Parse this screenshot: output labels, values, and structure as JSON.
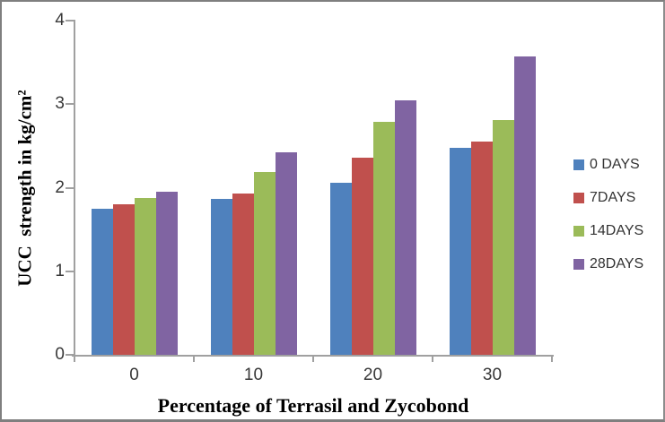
{
  "chart_data": {
    "type": "bar",
    "title": "",
    "xlabel": "Percentage of Terrasil and Zycobond",
    "ylabel": "UCC  strength in kg/cm²",
    "categories": [
      "0",
      "10",
      "20",
      "30"
    ],
    "series": [
      {
        "name": "0 DAYS",
        "color": "#4F81BD",
        "values": [
          1.75,
          1.87,
          2.06,
          2.48
        ]
      },
      {
        "name": "7DAYS",
        "color": "#C0504D",
        "values": [
          1.8,
          1.93,
          2.36,
          2.55
        ]
      },
      {
        "name": "14DAYS",
        "color": "#9BBB59",
        "values": [
          1.88,
          2.19,
          2.79,
          2.81
        ]
      },
      {
        "name": "28DAYS",
        "color": "#8064A2",
        "values": [
          1.95,
          2.42,
          3.05,
          3.57
        ]
      }
    ],
    "ylim": [
      0,
      4
    ],
    "yticks": [
      0,
      1,
      2,
      3,
      4
    ],
    "grid": false,
    "legend_position": "right",
    "axis_color": "#a0a0a0"
  }
}
